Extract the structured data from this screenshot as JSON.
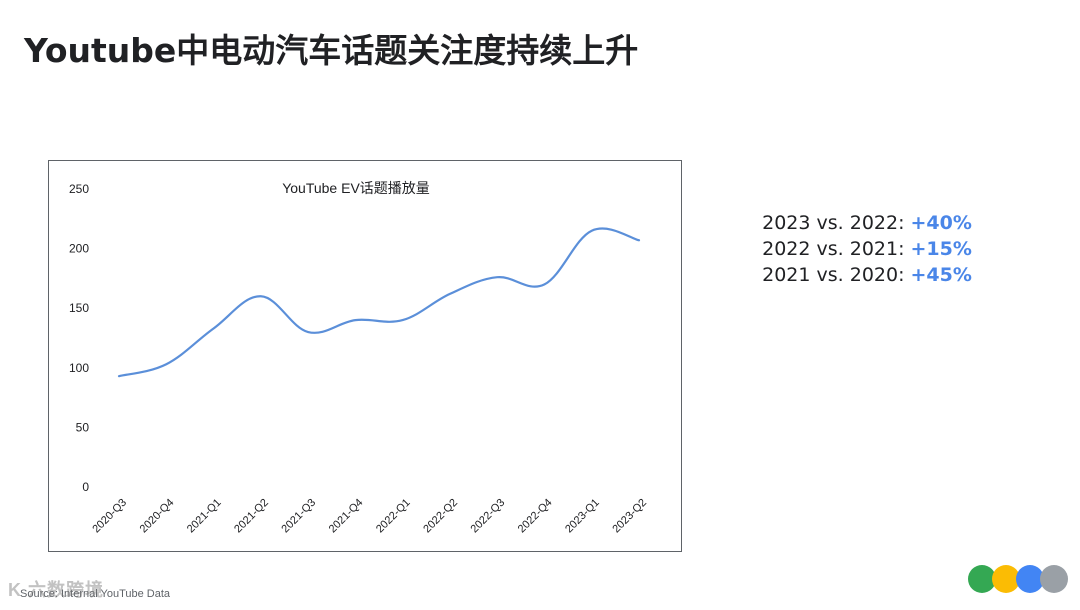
{
  "title": "Youtube中电动汽车话题关注度持续上升",
  "source": "Source: Internal YouTube Data",
  "watermark": "K   六数跨境",
  "stats": [
    {
      "label": "2023 vs. 2022:",
      "value": "+40%"
    },
    {
      "label": "2022 vs. 2021:",
      "value": "+15%"
    },
    {
      "label": "2021 vs. 2020:",
      "value": "+45%"
    }
  ],
  "colors": {
    "accent": "#4a86e8",
    "line": "#5b8fd9",
    "dots": [
      "#34a853",
      "#fbbc04",
      "#4285f4",
      "#9aa0a6"
    ]
  },
  "chart_data": {
    "type": "line",
    "title": "YouTube EV话题播放量",
    "xlabel": "",
    "ylabel": "",
    "ylim": [
      0,
      250
    ],
    "yticks": [
      0,
      50,
      100,
      150,
      200,
      250
    ],
    "grid": false,
    "categories": [
      "2020-Q3",
      "2020-Q4",
      "2021-Q1",
      "2021-Q2",
      "2021-Q3",
      "2021-Q4",
      "2022-Q1",
      "2022-Q2",
      "2022-Q3",
      "2022-Q4",
      "2023-Q1",
      "2023-Q2"
    ],
    "series": [
      {
        "values": [
          93,
          103,
          133,
          160,
          130,
          140,
          140,
          162,
          176,
          170,
          215,
          207
        ]
      }
    ]
  }
}
